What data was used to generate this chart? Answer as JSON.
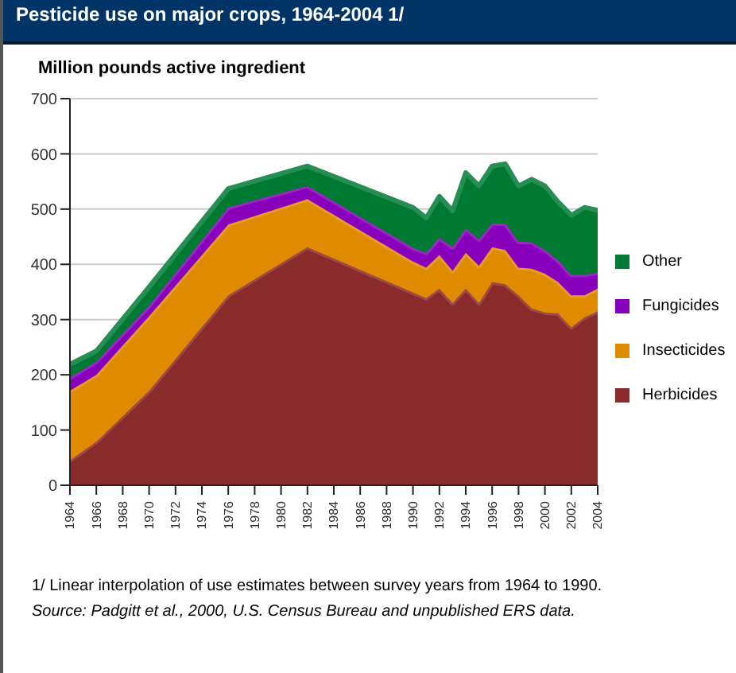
{
  "chart_data": {
    "type": "area",
    "stacked": true,
    "title": "Pesticide use on major crops, 1964-2004 1/",
    "ylabel": "Million pounds active ingredient",
    "x": [
      1964,
      1966,
      1970,
      1976,
      1982,
      1990,
      1991,
      1992,
      1993,
      1994,
      1995,
      1996,
      1997,
      1998,
      1999,
      2000,
      2001,
      2002,
      2003,
      2004
    ],
    "series": [
      {
        "name": "Herbicides",
        "color": "#8b2a2a",
        "values": [
          45,
          79,
          171,
          344,
          431,
          349,
          339,
          356,
          330,
          356,
          330,
          368,
          364,
          344,
          320,
          313,
          311,
          286,
          304,
          315
        ]
      },
      {
        "name": "Insecticides",
        "color": "#e08a00",
        "values": [
          126,
          121,
          135,
          128,
          87,
          56,
          55,
          61,
          58,
          65,
          67,
          63,
          62,
          50,
          72,
          70,
          57,
          58,
          40,
          41
        ]
      },
      {
        "name": "Fungicides",
        "color": "#8800bb",
        "values": [
          24,
          24,
          19,
          31,
          24,
          25,
          27,
          31,
          43,
          44,
          48,
          43,
          48,
          47,
          48,
          43,
          39,
          37,
          37,
          29
        ]
      },
      {
        "name": "Other",
        "color": "#007a33",
        "values": [
          24,
          19,
          34,
          34,
          36,
          73,
          63,
          75,
          66,
          101,
          97,
          104,
          108,
          101,
          114,
          116,
          106,
          108,
          122,
          113
        ]
      }
    ],
    "xlim": [
      1964,
      2004
    ],
    "xticks": [
      1964,
      1966,
      1968,
      1970,
      1972,
      1974,
      1976,
      1978,
      1980,
      1982,
      1984,
      1986,
      1988,
      1990,
      1992,
      1994,
      1996,
      1998,
      2000,
      2002,
      2004
    ],
    "ylim": [
      0,
      700
    ],
    "yticks": [
      0,
      100,
      200,
      300,
      400,
      500,
      600,
      700
    ],
    "grid": "y",
    "legend": "right",
    "annotations": [
      "1/ Linear interpolation of use estimates between survey years from 1964 to 1990.",
      "Source: Padgitt et al., 2000, U.S. Census Bureau and unpublished ERS data."
    ]
  }
}
